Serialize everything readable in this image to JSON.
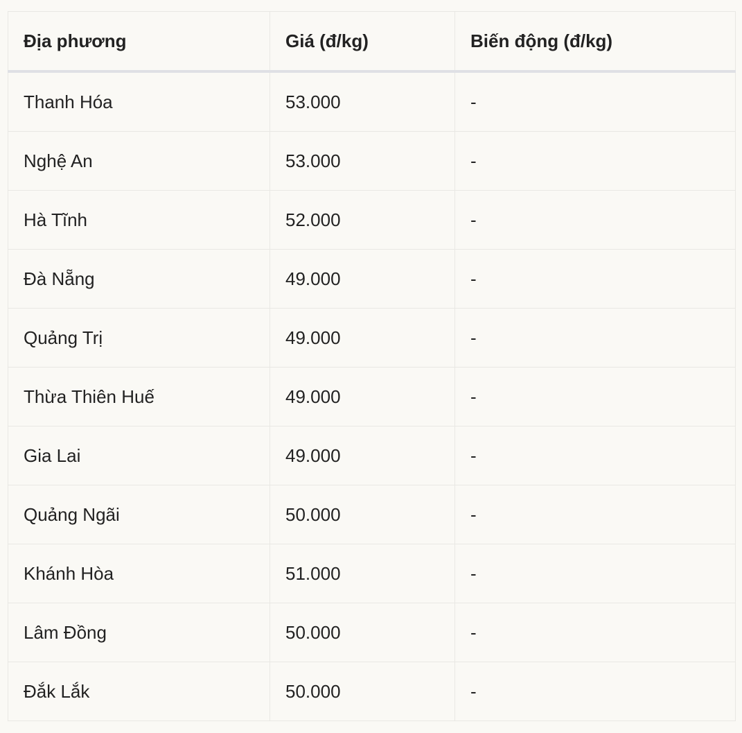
{
  "table": {
    "headers": [
      "Địa phương",
      "Giá (đ/kg)",
      "Biến động (đ/kg)"
    ],
    "rows": [
      [
        "Thanh Hóa",
        "53.000",
        "-"
      ],
      [
        "Nghệ An",
        "53.000",
        "-"
      ],
      [
        "Hà Tĩnh",
        "52.000",
        "-"
      ],
      [
        "Đà Nẵng",
        "49.000",
        "-"
      ],
      [
        "Quảng Trị",
        "49.000",
        "-"
      ],
      [
        "Thừa Thiên Huế",
        "49.000",
        "-"
      ],
      [
        "Gia Lai",
        "49.000",
        "-"
      ],
      [
        "Quảng Ngãi",
        "50.000",
        "-"
      ],
      [
        "Khánh Hòa",
        "51.000",
        "-"
      ],
      [
        "Lâm Đồng",
        "50.000",
        "-"
      ],
      [
        "Đắk Lắk",
        "50.000",
        "-"
      ]
    ]
  }
}
